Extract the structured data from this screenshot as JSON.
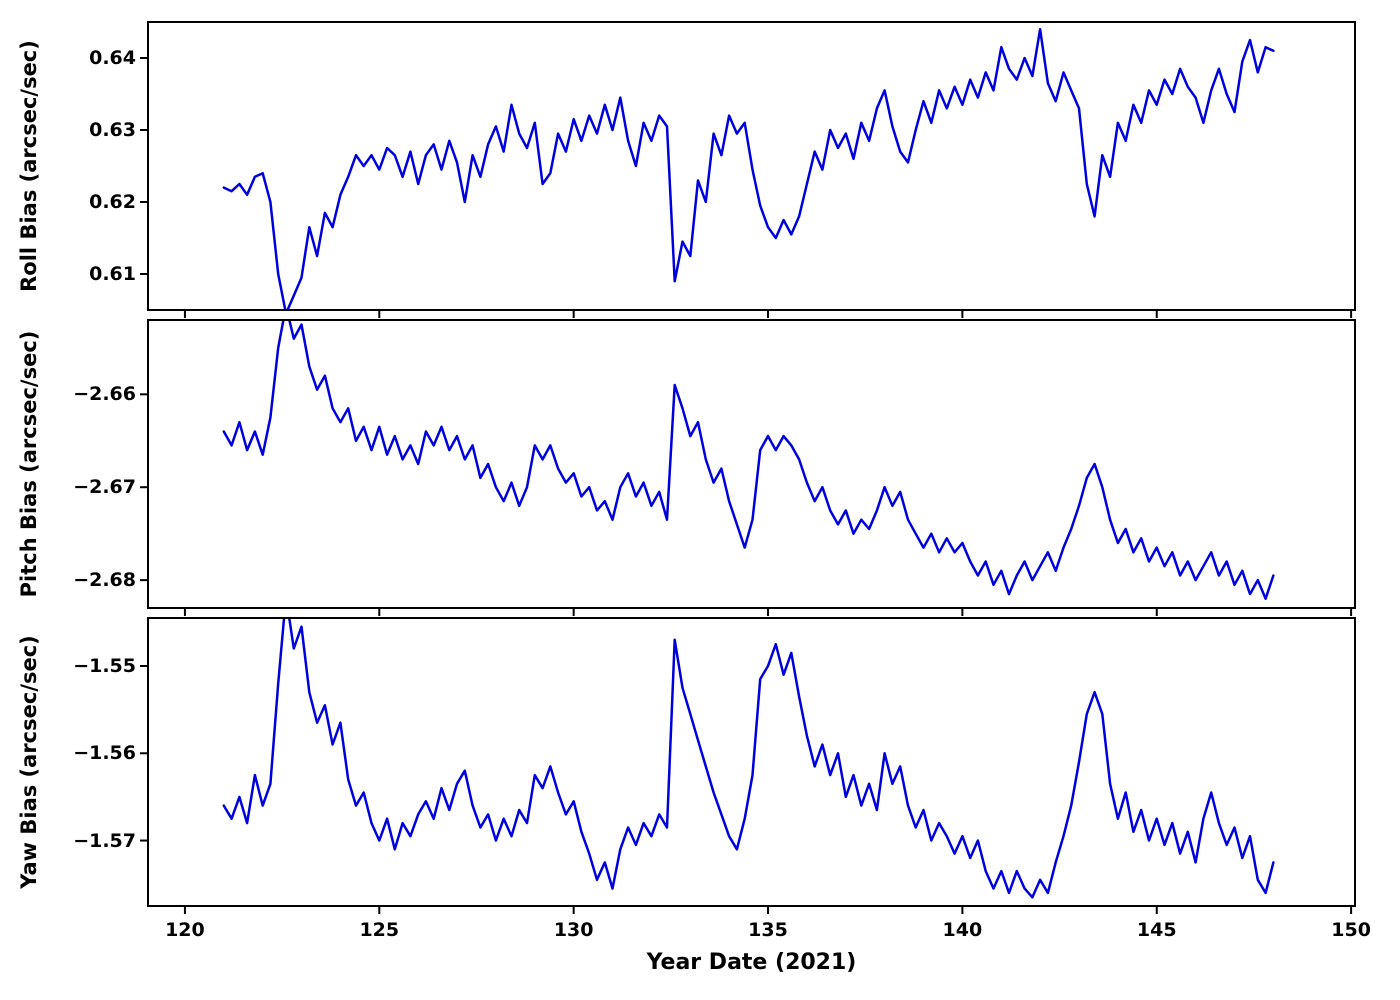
{
  "chart_data": {
    "type": "line",
    "title": "",
    "series_color": "#0000dd",
    "x_axis": {
      "label": "Year Date (2021)",
      "ticks": [
        120,
        125,
        130,
        135,
        140,
        145,
        150
      ],
      "range": [
        119.05,
        150.1
      ]
    },
    "x_start": 121.0,
    "x_step": 0.2,
    "panels": [
      {
        "ylabel": "Roll Bias (arcsec/sec)",
        "yticks": [
          0.61,
          0.62,
          0.63,
          0.64
        ],
        "ytick_labels": [
          "0.61",
          "0.62",
          "0.63",
          "0.64"
        ],
        "range": [
          0.605,
          0.645
        ],
        "values": [
          0.622,
          0.6215,
          0.6225,
          0.621,
          0.6235,
          0.624,
          0.62,
          0.61,
          0.6045,
          0.607,
          0.6095,
          0.6165,
          0.6125,
          0.6185,
          0.6165,
          0.621,
          0.6235,
          0.6265,
          0.625,
          0.6265,
          0.6245,
          0.6275,
          0.6265,
          0.6235,
          0.627,
          0.6225,
          0.6265,
          0.628,
          0.6245,
          0.6285,
          0.6255,
          0.62,
          0.6265,
          0.6235,
          0.628,
          0.6305,
          0.627,
          0.6335,
          0.6295,
          0.6275,
          0.631,
          0.6225,
          0.624,
          0.6295,
          0.627,
          0.6315,
          0.6285,
          0.632,
          0.6295,
          0.6335,
          0.63,
          0.6345,
          0.6285,
          0.625,
          0.631,
          0.6285,
          0.632,
          0.6305,
          0.609,
          0.6145,
          0.6125,
          0.623,
          0.62,
          0.6295,
          0.6265,
          0.632,
          0.6295,
          0.631,
          0.6245,
          0.6195,
          0.6165,
          0.615,
          0.6175,
          0.6155,
          0.618,
          0.6225,
          0.627,
          0.6245,
          0.63,
          0.6275,
          0.6295,
          0.626,
          0.631,
          0.6285,
          0.633,
          0.6355,
          0.6305,
          0.627,
          0.6255,
          0.63,
          0.634,
          0.631,
          0.6355,
          0.633,
          0.636,
          0.6335,
          0.637,
          0.6345,
          0.638,
          0.6355,
          0.6415,
          0.6385,
          0.637,
          0.64,
          0.6375,
          0.644,
          0.6365,
          0.634,
          0.638,
          0.6355,
          0.633,
          0.6225,
          0.618,
          0.6265,
          0.6235,
          0.631,
          0.6285,
          0.6335,
          0.631,
          0.6355,
          0.6335,
          0.637,
          0.635,
          0.6385,
          0.636,
          0.6345,
          0.631,
          0.6355,
          0.6385,
          0.635,
          0.6325,
          0.6395,
          0.6425,
          0.638,
          0.6415,
          0.641
        ]
      },
      {
        "ylabel": "Pitch Bias (arcsec/sec)",
        "yticks": [
          -2.66,
          -2.67,
          -2.68
        ],
        "ytick_labels": [
          "−2.66",
          "−2.67",
          "−2.68"
        ],
        "range": [
          -2.683,
          -2.652
        ],
        "values": [
          -2.664,
          -2.6655,
          -2.663,
          -2.666,
          -2.664,
          -2.6665,
          -2.6625,
          -2.655,
          -2.6505,
          -2.654,
          -2.6525,
          -2.657,
          -2.6595,
          -2.658,
          -2.6615,
          -2.663,
          -2.6615,
          -2.665,
          -2.6635,
          -2.666,
          -2.6635,
          -2.6665,
          -2.6645,
          -2.667,
          -2.6655,
          -2.6675,
          -2.664,
          -2.6655,
          -2.6635,
          -2.666,
          -2.6645,
          -2.667,
          -2.6655,
          -2.669,
          -2.6675,
          -2.67,
          -2.6715,
          -2.6695,
          -2.672,
          -2.67,
          -2.6655,
          -2.667,
          -2.6655,
          -2.668,
          -2.6695,
          -2.6685,
          -2.671,
          -2.67,
          -2.6725,
          -2.6715,
          -2.6735,
          -2.67,
          -2.6685,
          -2.671,
          -2.6695,
          -2.672,
          -2.6705,
          -2.6735,
          -2.659,
          -2.6615,
          -2.6645,
          -2.663,
          -2.667,
          -2.6695,
          -2.668,
          -2.6715,
          -2.674,
          -2.6765,
          -2.6735,
          -2.666,
          -2.6645,
          -2.666,
          -2.6645,
          -2.6655,
          -2.667,
          -2.6695,
          -2.6715,
          -2.67,
          -2.6725,
          -2.674,
          -2.6725,
          -2.675,
          -2.6735,
          -2.6745,
          -2.6725,
          -2.67,
          -2.672,
          -2.6705,
          -2.6735,
          -2.675,
          -2.6765,
          -2.675,
          -2.677,
          -2.6755,
          -2.677,
          -2.676,
          -2.678,
          -2.6795,
          -2.678,
          -2.6805,
          -2.679,
          -2.6815,
          -2.6795,
          -2.678,
          -2.68,
          -2.6785,
          -2.677,
          -2.679,
          -2.6765,
          -2.6745,
          -2.672,
          -2.669,
          -2.6675,
          -2.67,
          -2.6735,
          -2.676,
          -2.6745,
          -2.677,
          -2.6755,
          -2.678,
          -2.6765,
          -2.6785,
          -2.677,
          -2.6795,
          -2.678,
          -2.68,
          -2.6785,
          -2.677,
          -2.6795,
          -2.678,
          -2.6805,
          -2.679,
          -2.6815,
          -2.68,
          -2.682,
          -2.6795
        ]
      },
      {
        "ylabel": "Yaw Bias (arcsec/sec)",
        "yticks": [
          -1.55,
          -1.56,
          -1.57
        ],
        "ytick_labels": [
          "−1.55",
          "−1.56",
          "−1.57"
        ],
        "range": [
          -1.5775,
          -1.5445
        ],
        "values": [
          -1.566,
          -1.5675,
          -1.565,
          -1.568,
          -1.5625,
          -1.566,
          -1.5635,
          -1.552,
          -1.542,
          -1.548,
          -1.5455,
          -1.553,
          -1.5565,
          -1.5545,
          -1.559,
          -1.5565,
          -1.563,
          -1.566,
          -1.5645,
          -1.568,
          -1.57,
          -1.5675,
          -1.571,
          -1.568,
          -1.5695,
          -1.567,
          -1.5655,
          -1.5675,
          -1.564,
          -1.5665,
          -1.5635,
          -1.562,
          -1.566,
          -1.5685,
          -1.567,
          -1.57,
          -1.5675,
          -1.5695,
          -1.5665,
          -1.568,
          -1.5625,
          -1.564,
          -1.5615,
          -1.5645,
          -1.567,
          -1.5655,
          -1.569,
          -1.5715,
          -1.5745,
          -1.5725,
          -1.5755,
          -1.571,
          -1.5685,
          -1.5705,
          -1.568,
          -1.5695,
          -1.567,
          -1.5685,
          -1.547,
          -1.5525,
          -1.5555,
          -1.5585,
          -1.5615,
          -1.5645,
          -1.567,
          -1.5695,
          -1.571,
          -1.5675,
          -1.5625,
          -1.5515,
          -1.55,
          -1.5475,
          -1.551,
          -1.5485,
          -1.5535,
          -1.558,
          -1.5615,
          -1.559,
          -1.5625,
          -1.56,
          -1.565,
          -1.5625,
          -1.566,
          -1.5635,
          -1.5665,
          -1.56,
          -1.5635,
          -1.5615,
          -1.566,
          -1.5685,
          -1.5665,
          -1.57,
          -1.568,
          -1.5695,
          -1.5715,
          -1.5695,
          -1.572,
          -1.57,
          -1.5735,
          -1.5755,
          -1.5735,
          -1.576,
          -1.5735,
          -1.5755,
          -1.5765,
          -1.5745,
          -1.576,
          -1.5725,
          -1.5695,
          -1.566,
          -1.561,
          -1.5555,
          -1.553,
          -1.5555,
          -1.5635,
          -1.5675,
          -1.5645,
          -1.569,
          -1.5665,
          -1.57,
          -1.5675,
          -1.5705,
          -1.568,
          -1.5715,
          -1.569,
          -1.5725,
          -1.5675,
          -1.5645,
          -1.568,
          -1.5705,
          -1.5685,
          -1.572,
          -1.5695,
          -1.5745,
          -1.576,
          -1.5725
        ]
      }
    ]
  }
}
